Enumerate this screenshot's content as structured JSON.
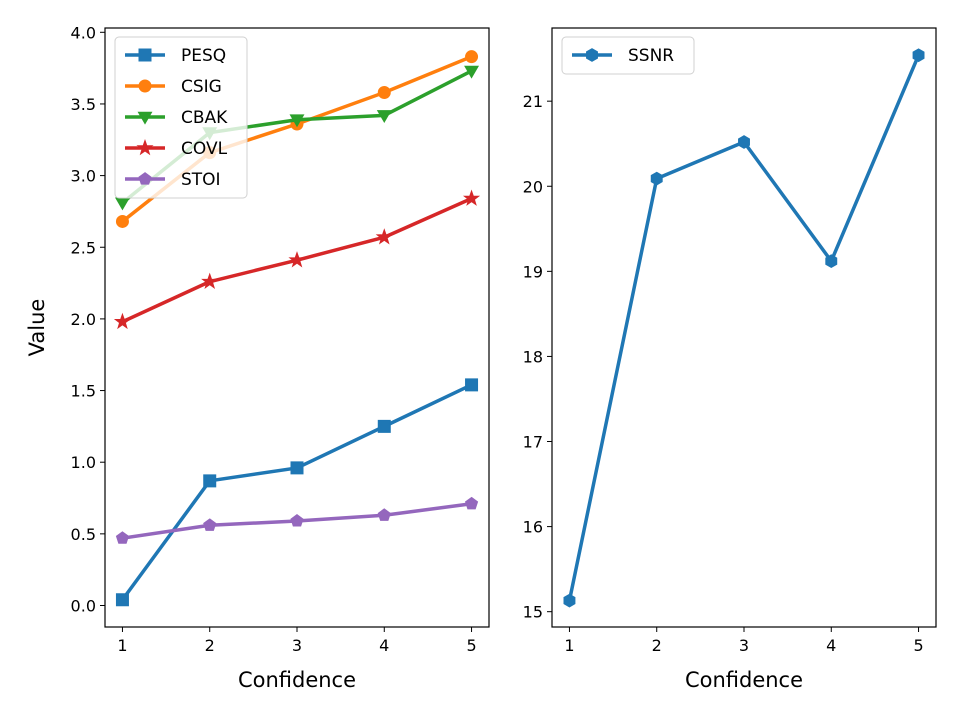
{
  "chart_data": [
    {
      "type": "line",
      "title": "",
      "xlabel": "Confidence",
      "ylabel": "Value",
      "x": [
        1,
        2,
        3,
        4,
        5
      ],
      "xticks": [
        1,
        2,
        3,
        4,
        5
      ],
      "xlim": [
        0.8,
        5.2
      ],
      "yticks": [
        0.0,
        0.5,
        1.0,
        1.5,
        2.0,
        2.5,
        3.0,
        3.5,
        4.0
      ],
      "ytick_labels": [
        "0.0",
        "0.5",
        "1.0",
        "1.5",
        "2.0",
        "2.5",
        "3.0",
        "3.5",
        "4.0"
      ],
      "ylim": [
        -0.15,
        4.03
      ],
      "grid": false,
      "legend_position": "top-left",
      "series": [
        {
          "name": "PESQ",
          "color": "#1f77b4",
          "marker": "square",
          "values": [
            0.04,
            0.87,
            0.96,
            1.25,
            1.54
          ]
        },
        {
          "name": "CSIG",
          "color": "#ff7f0e",
          "marker": "circle",
          "values": [
            2.68,
            3.16,
            3.36,
            3.58,
            3.83
          ]
        },
        {
          "name": "CBAK",
          "color": "#2ca02c",
          "marker": "triangle-down",
          "values": [
            2.81,
            3.3,
            3.39,
            3.42,
            3.73
          ]
        },
        {
          "name": "COVL",
          "color": "#d62728",
          "marker": "star",
          "values": [
            1.98,
            2.26,
            2.41,
            2.57,
            2.84
          ]
        },
        {
          "name": "STOI",
          "color": "#9467bd",
          "marker": "pentagon",
          "values": [
            0.47,
            0.56,
            0.59,
            0.63,
            0.71
          ]
        }
      ]
    },
    {
      "type": "line",
      "title": "",
      "xlabel": "Confidence",
      "ylabel": "",
      "x": [
        1,
        2,
        3,
        4,
        5
      ],
      "xticks": [
        1,
        2,
        3,
        4,
        5
      ],
      "xlim": [
        0.8,
        5.2
      ],
      "yticks": [
        15,
        16,
        17,
        18,
        19,
        20,
        21
      ],
      "ytick_labels": [
        "15",
        "16",
        "17",
        "18",
        "19",
        "20",
        "21"
      ],
      "ylim": [
        14.82,
        21.86
      ],
      "grid": false,
      "legend_position": "top-left",
      "series": [
        {
          "name": "SSNR",
          "color": "#1f77b4",
          "marker": "hexagon",
          "values": [
            15.13,
            20.09,
            20.52,
            19.12,
            21.54
          ]
        }
      ]
    }
  ]
}
